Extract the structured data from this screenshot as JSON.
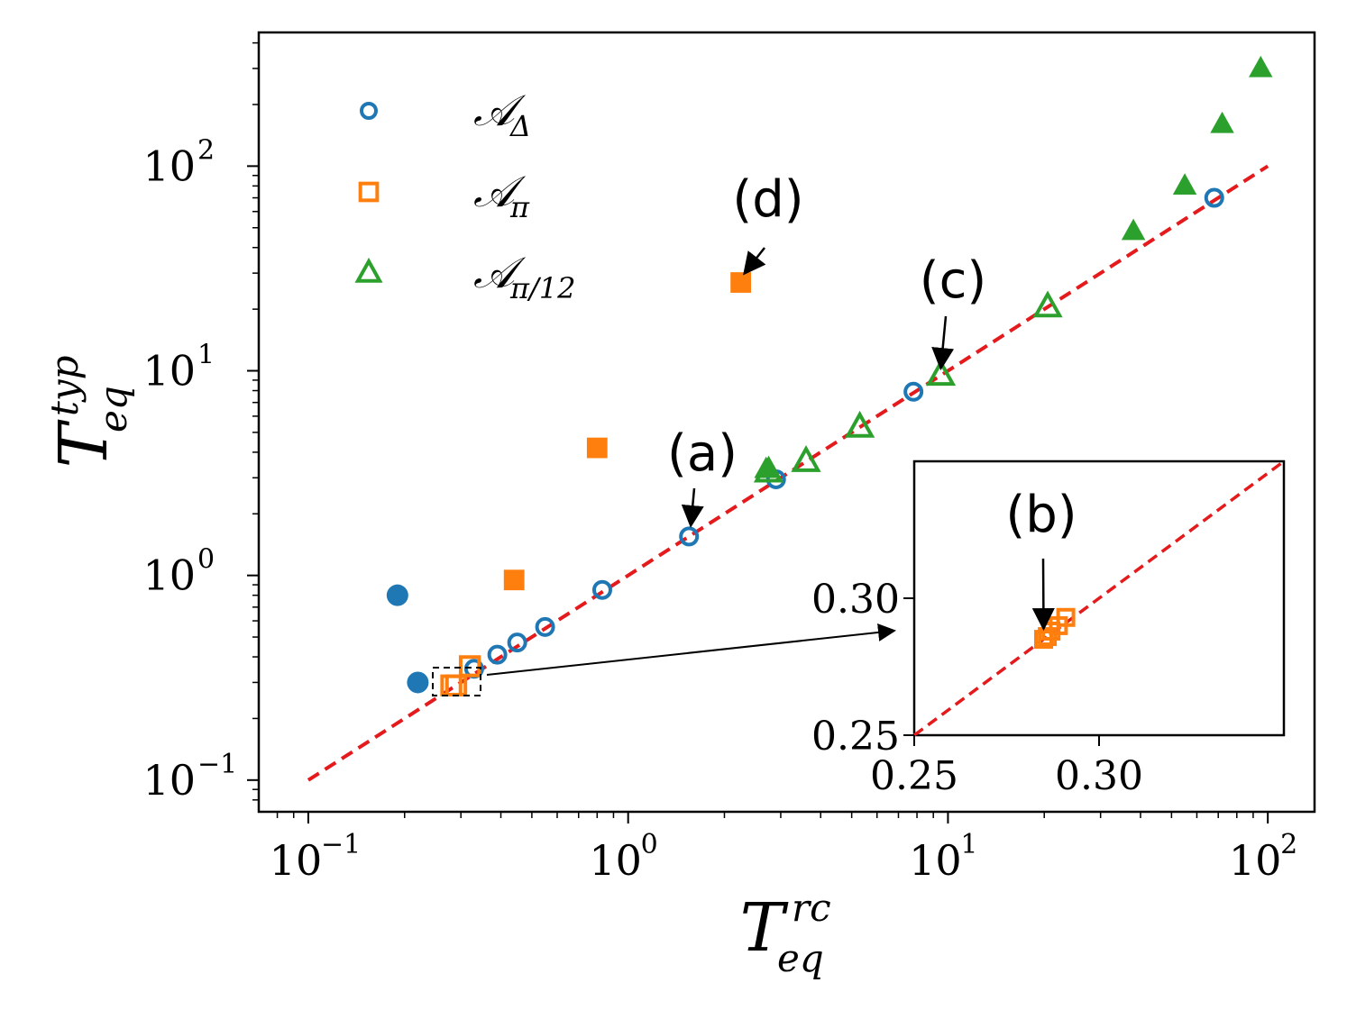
{
  "chart_data": {
    "type": "scatter",
    "xscale": "log",
    "yscale": "log",
    "xlim": [
      0.07,
      140
    ],
    "ylim": [
      0.07,
      450
    ],
    "xlabel": "T",
    "xlabel_sup": "rc",
    "xlabel_sub": "eq",
    "ylabel": "T",
    "ylabel_sup": "typ",
    "ylabel_sub": "eq",
    "x_ticks": [
      {
        "value": 0.1,
        "base": "10",
        "exp": "−1"
      },
      {
        "value": 1,
        "base": "10",
        "exp": "0"
      },
      {
        "value": 10,
        "base": "10",
        "exp": "1"
      },
      {
        "value": 100,
        "base": "10",
        "exp": "2"
      }
    ],
    "y_ticks": [
      {
        "value": 0.1,
        "base": "10",
        "exp": "−1"
      },
      {
        "value": 1,
        "base": "10",
        "exp": "0"
      },
      {
        "value": 10,
        "base": "10",
        "exp": "1"
      },
      {
        "value": 100,
        "base": "10",
        "exp": "2"
      }
    ],
    "reference_line": {
      "x": [
        0.1,
        100
      ],
      "y": [
        0.1,
        100
      ],
      "color": "#e41a1c",
      "style": "dashed"
    },
    "legend": {
      "position": "top-left",
      "entries": [
        {
          "label": "𝒜",
          "sub": "Δ",
          "marker": "circle",
          "color": "#1f77b4"
        },
        {
          "label": "𝒜",
          "sub": "π",
          "marker": "square",
          "color": "#ff7f0e"
        },
        {
          "label": "𝒜",
          "sub": "π/12",
          "marker": "triangle",
          "color": "#2ca02c"
        }
      ]
    },
    "series": [
      {
        "name": "A_Delta",
        "marker": "circle",
        "color": "#1f77b4",
        "filled": false,
        "points": [
          [
            0.33,
            0.35
          ],
          [
            0.39,
            0.41
          ],
          [
            0.45,
            0.47
          ],
          [
            0.55,
            0.56
          ],
          [
            0.83,
            0.85
          ],
          [
            1.55,
            1.55
          ],
          [
            2.9,
            2.95
          ],
          [
            7.8,
            7.9
          ],
          [
            68,
            70
          ]
        ]
      },
      {
        "name": "A_Delta_filled",
        "marker": "circle",
        "color": "#1f77b4",
        "filled": true,
        "points": [
          [
            0.19,
            0.8
          ],
          [
            0.22,
            0.3
          ]
        ]
      },
      {
        "name": "A_pi",
        "marker": "square",
        "color": "#ff7f0e",
        "filled": false,
        "points": [
          [
            0.28,
            0.29
          ],
          [
            0.29,
            0.29
          ],
          [
            0.32,
            0.36
          ]
        ]
      },
      {
        "name": "A_pi_filled",
        "marker": "square",
        "color": "#ff7f0e",
        "filled": true,
        "points": [
          [
            0.44,
            0.95
          ],
          [
            0.8,
            4.2
          ],
          [
            2.25,
            27
          ]
        ]
      },
      {
        "name": "A_pi12",
        "marker": "triangle",
        "color": "#2ca02c",
        "filled": false,
        "points": [
          [
            2.75,
            3.2
          ],
          [
            3.6,
            3.6
          ],
          [
            5.3,
            5.3
          ],
          [
            9.5,
            9.5
          ],
          [
            20.5,
            20.5
          ]
        ]
      },
      {
        "name": "A_pi12_filled",
        "marker": "triangle",
        "color": "#2ca02c",
        "filled": true,
        "points": [
          [
            2.7,
            3.3
          ],
          [
            38,
            48
          ],
          [
            55,
            80
          ],
          [
            72,
            160
          ],
          [
            95,
            300
          ]
        ]
      }
    ],
    "annotations": [
      {
        "text": "(a)",
        "x": 1.55,
        "y": 1.55
      },
      {
        "text": "(c)",
        "x": 9.5,
        "y": 9.5
      },
      {
        "text": "(d)",
        "x": 2.25,
        "y": 27
      },
      {
        "text": "(b)",
        "x": 0.285,
        "y": 0.285
      }
    ],
    "inset": {
      "xlim": [
        0.25,
        0.35
      ],
      "ylim": [
        0.25,
        0.35
      ],
      "x_ticks": [
        "0.25",
        "0.30"
      ],
      "y_ticks": [
        "0.25",
        "0.30"
      ],
      "points": [
        [
          0.285,
          0.285
        ],
        [
          0.286,
          0.286
        ],
        [
          0.287,
          0.288
        ],
        [
          0.289,
          0.29
        ],
        [
          0.291,
          0.293
        ]
      ]
    }
  }
}
